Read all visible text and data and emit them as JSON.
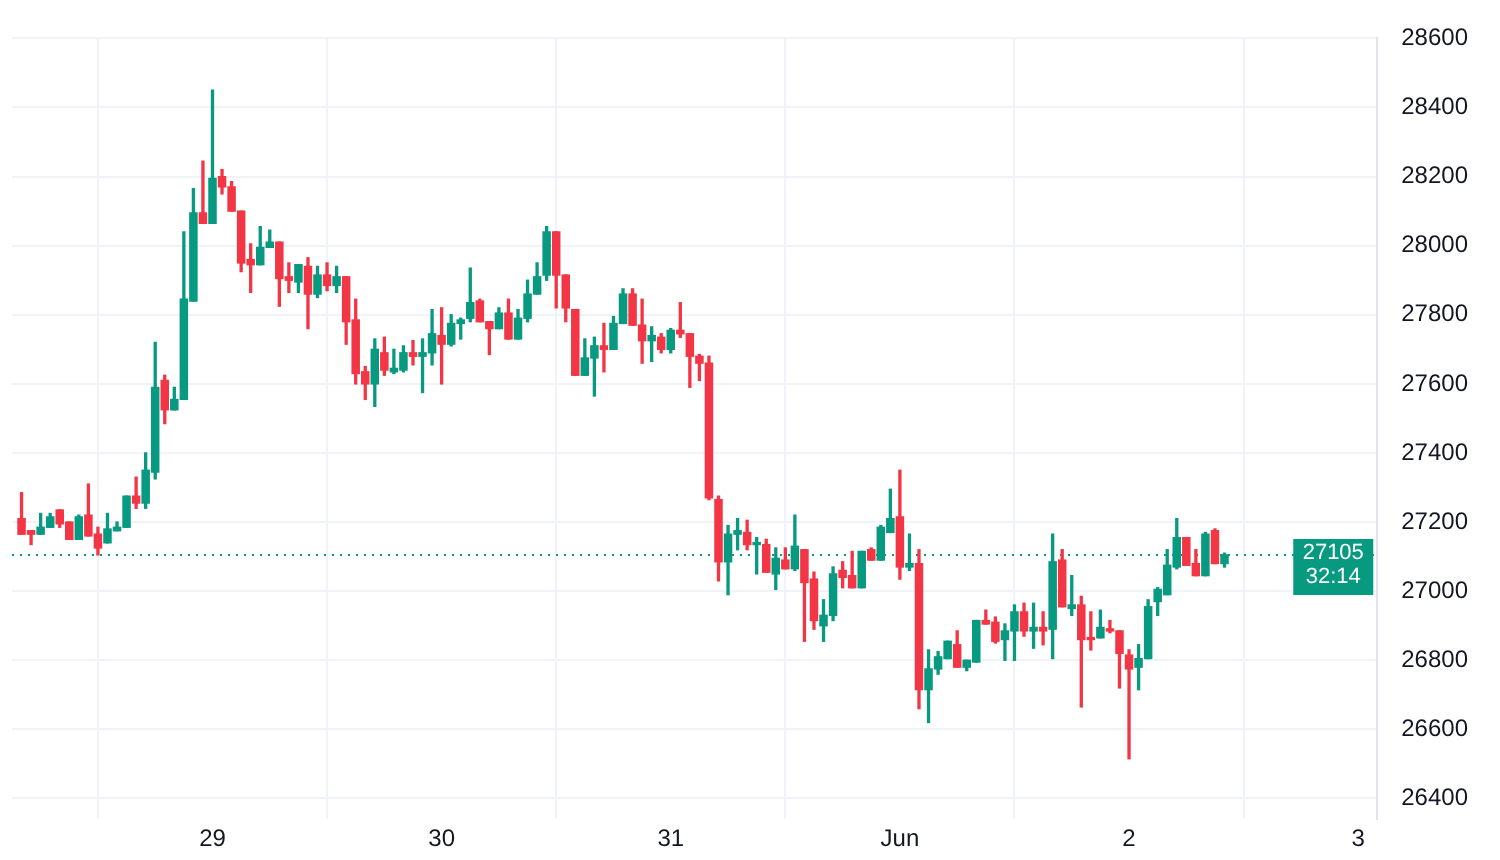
{
  "chart_data": {
    "type": "candlestick",
    "x": [
      "--05-28T04:00",
      "--05-28T05:00",
      "--05-28T06:00",
      "--05-28T07:00",
      "--05-28T08:00",
      "--05-28T09:00",
      "--05-28T10:00",
      "--05-28T11:00",
      "--05-28T12:00",
      "--05-28T13:00",
      "--05-28T14:00",
      "--05-28T15:00",
      "--05-28T16:00",
      "--05-28T17:00",
      "--05-28T18:00",
      "--05-28T19:00",
      "--05-28T20:00",
      "--05-28T21:00",
      "--05-28T22:00",
      "--05-28T23:00",
      "--05-29T00:00",
      "--05-29T01:00",
      "--05-29T02:00",
      "--05-29T03:00",
      "--05-29T04:00",
      "--05-29T05:00",
      "--05-29T06:00",
      "--05-29T07:00",
      "--05-29T08:00",
      "--05-29T09:00",
      "--05-29T10:00",
      "--05-29T11:00",
      "--05-29T12:00",
      "--05-29T13:00",
      "--05-29T14:00",
      "--05-29T15:00",
      "--05-29T16:00",
      "--05-29T17:00",
      "--05-29T18:00",
      "--05-29T19:00",
      "--05-29T20:00",
      "--05-29T21:00",
      "--05-29T22:00",
      "--05-29T23:00",
      "--05-30T00:00",
      "--05-30T01:00",
      "--05-30T02:00",
      "--05-30T03:00",
      "--05-30T04:00",
      "--05-30T05:00",
      "--05-30T06:00",
      "--05-30T07:00",
      "--05-30T08:00",
      "--05-30T09:00",
      "--05-30T10:00",
      "--05-30T11:00",
      "--05-30T12:00",
      "--05-30T13:00",
      "--05-30T14:00",
      "--05-30T15:00",
      "--05-30T16:00",
      "--05-30T17:00",
      "--05-30T18:00",
      "--05-30T19:00",
      "--05-30T20:00",
      "--05-30T21:00",
      "--05-30T22:00",
      "--05-30T23:00",
      "--05-31T00:00",
      "--05-31T01:00",
      "--05-31T02:00",
      "--05-31T03:00",
      "--05-31T04:00",
      "--05-31T05:00",
      "--05-31T06:00",
      "--05-31T07:00",
      "--05-31T08:00",
      "--05-31T09:00",
      "--05-31T10:00",
      "--05-31T11:00",
      "--05-31T12:00",
      "--05-31T13:00",
      "--05-31T14:00",
      "--05-31T15:00",
      "--05-31T16:00",
      "--05-31T17:00",
      "--05-31T18:00",
      "--05-31T19:00",
      "--05-31T20:00",
      "--05-31T21:00",
      "--05-31T22:00",
      "--05-31T23:00",
      "--06-01T00:00",
      "--06-01T01:00",
      "--06-01T02:00",
      "--06-01T03:00",
      "--06-01T04:00",
      "--06-01T05:00",
      "--06-01T06:00",
      "--06-01T07:00",
      "--06-01T08:00",
      "--06-01T09:00",
      "--06-01T10:00",
      "--06-01T11:00",
      "--06-01T12:00",
      "--06-01T13:00",
      "--06-01T14:00",
      "--06-01T15:00",
      "--06-01T16:00",
      "--06-01T17:00",
      "--06-01T18:00",
      "--06-01T19:00",
      "--06-01T20:00",
      "--06-01T21:00",
      "--06-01T22:00",
      "--06-01T23:00",
      "--06-02T00:00",
      "--06-02T01:00",
      "--06-02T02:00",
      "--06-02T03:00",
      "--06-02T04:00",
      "--06-02T05:00",
      "--06-02T06:00",
      "--06-02T07:00",
      "--06-02T08:00",
      "--06-02T09:00",
      "--06-02T10:00"
    ],
    "ohlc": [
      [
        27210,
        27285,
        27165,
        27165
      ],
      [
        27175,
        27175,
        27135,
        27165
      ],
      [
        27165,
        27225,
        27165,
        27185
      ],
      [
        27185,
        27225,
        27185,
        27215
      ],
      [
        27235,
        27235,
        27185,
        27195
      ],
      [
        27200,
        27200,
        27150,
        27150
      ],
      [
        27150,
        27220,
        27150,
        27215
      ],
      [
        27220,
        27310,
        27160,
        27160
      ],
      [
        27165,
        27185,
        27105,
        27125
      ],
      [
        27140,
        27225,
        27140,
        27180
      ],
      [
        27175,
        27200,
        27175,
        27185
      ],
      [
        27185,
        27275,
        27185,
        27275
      ],
      [
        27275,
        27330,
        27240,
        27255
      ],
      [
        27255,
        27400,
        27240,
        27350
      ],
      [
        27345,
        27720,
        27325,
        27590
      ],
      [
        27610,
        27625,
        27485,
        27525
      ],
      [
        27525,
        27590,
        27525,
        27555
      ],
      [
        27555,
        28040,
        27555,
        27845
      ],
      [
        27840,
        28165,
        27840,
        28095
      ],
      [
        28095,
        28245,
        28065,
        28065
      ],
      [
        28065,
        28450,
        28065,
        28195
      ],
      [
        28200,
        28220,
        28150,
        28170
      ],
      [
        28170,
        28185,
        28100,
        28100
      ],
      [
        28100,
        28100,
        27925,
        27950
      ],
      [
        27960,
        28005,
        27865,
        27945
      ],
      [
        27945,
        28055,
        27945,
        27995
      ],
      [
        27995,
        28045,
        27995,
        28010
      ],
      [
        28010,
        28010,
        27825,
        27905
      ],
      [
        27910,
        27950,
        27865,
        27900
      ],
      [
        27895,
        27945,
        27865,
        27945
      ],
      [
        27940,
        27965,
        27760,
        27860
      ],
      [
        27860,
        27940,
        27850,
        27915
      ],
      [
        27915,
        27950,
        27870,
        27885
      ],
      [
        27885,
        27940,
        27865,
        27910
      ],
      [
        27910,
        27910,
        27715,
        27780
      ],
      [
        27785,
        27845,
        27600,
        27630
      ],
      [
        27635,
        27650,
        27555,
        27600
      ],
      [
        27600,
        27730,
        27535,
        27700
      ],
      [
        27690,
        27735,
        27625,
        27640
      ],
      [
        27635,
        27700,
        27630,
        27645
      ],
      [
        27640,
        27710,
        27635,
        27690
      ],
      [
        27690,
        27725,
        27655,
        27680
      ],
      [
        27680,
        27730,
        27575,
        27690
      ],
      [
        27690,
        27815,
        27655,
        27745
      ],
      [
        27740,
        27820,
        27600,
        27715
      ],
      [
        27715,
        27800,
        27710,
        27775
      ],
      [
        27775,
        27790,
        27730,
        27785
      ],
      [
        27790,
        27935,
        27780,
        27835
      ],
      [
        27840,
        27845,
        27780,
        27780
      ],
      [
        27780,
        27780,
        27685,
        27760
      ],
      [
        27760,
        27820,
        27760,
        27805
      ],
      [
        27805,
        27845,
        27730,
        27730
      ],
      [
        27730,
        27815,
        27730,
        27790
      ],
      [
        27790,
        27900,
        27780,
        27860
      ],
      [
        27860,
        27950,
        27860,
        27910
      ],
      [
        27915,
        28055,
        27900,
        28040
      ],
      [
        28040,
        28040,
        27820,
        27915
      ],
      [
        27915,
        27915,
        27780,
        27820
      ],
      [
        27815,
        27815,
        27625,
        27625
      ],
      [
        27625,
        27730,
        27625,
        27675
      ],
      [
        27675,
        27735,
        27565,
        27710
      ],
      [
        27710,
        27775,
        27635,
        27700
      ],
      [
        27700,
        27795,
        27700,
        27775
      ],
      [
        27775,
        27875,
        27775,
        27860
      ],
      [
        27860,
        27875,
        27770,
        27770
      ],
      [
        27770,
        27845,
        27660,
        27725
      ],
      [
        27725,
        27765,
        27665,
        27740
      ],
      [
        27735,
        27745,
        27690,
        27700
      ],
      [
        27700,
        27760,
        27690,
        27755
      ],
      [
        27755,
        27835,
        27735,
        27745
      ],
      [
        27745,
        27745,
        27590,
        27680
      ],
      [
        27680,
        27685,
        27610,
        27660
      ],
      [
        27660,
        27680,
        27265,
        27270
      ],
      [
        27265,
        27275,
        27030,
        27085
      ],
      [
        27085,
        27190,
        26990,
        27165
      ],
      [
        27165,
        27210,
        27120,
        27175
      ],
      [
        27170,
        27205,
        27120,
        27135
      ],
      [
        27135,
        27155,
        27050,
        27140
      ],
      [
        27135,
        27150,
        27055,
        27055
      ],
      [
        27050,
        27125,
        27005,
        27095
      ],
      [
        27090,
        27125,
        27065,
        27065
      ],
      [
        27065,
        27220,
        27060,
        27130
      ],
      [
        27120,
        27120,
        26855,
        27025
      ],
      [
        27035,
        27055,
        26890,
        26915
      ],
      [
        26900,
        26975,
        26855,
        26930
      ],
      [
        26930,
        27070,
        26915,
        27050
      ],
      [
        27060,
        27085,
        27010,
        27040
      ],
      [
        27045,
        27115,
        27010,
        27010
      ],
      [
        27010,
        27115,
        27010,
        27115
      ],
      [
        27120,
        27125,
        27090,
        27090
      ],
      [
        27090,
        27190,
        27090,
        27185
      ],
      [
        27170,
        27295,
        27170,
        27210
      ],
      [
        27215,
        27350,
        27035,
        27070
      ],
      [
        27070,
        27165,
        27060,
        27080
      ],
      [
        27080,
        27120,
        26660,
        26715
      ],
      [
        26715,
        26830,
        26620,
        26775
      ],
      [
        26775,
        26825,
        26760,
        26810
      ],
      [
        26805,
        26855,
        26805,
        26855
      ],
      [
        26845,
        26885,
        26780,
        26780
      ],
      [
        26780,
        26800,
        26770,
        26800
      ],
      [
        26795,
        26915,
        26795,
        26915
      ],
      [
        26915,
        26945,
        26905,
        26905
      ],
      [
        26910,
        26925,
        26850,
        26855
      ],
      [
        26860,
        26905,
        26800,
        26885
      ],
      [
        26885,
        26960,
        26800,
        26940
      ],
      [
        26940,
        26965,
        26870,
        26885
      ],
      [
        26885,
        26965,
        26835,
        26895
      ],
      [
        26895,
        26940,
        26845,
        26885
      ],
      [
        26890,
        27165,
        26805,
        27085
      ],
      [
        27090,
        27120,
        26955,
        26955
      ],
      [
        26950,
        27045,
        26930,
        26960
      ],
      [
        26960,
        26985,
        26665,
        26860
      ],
      [
        26865,
        26940,
        26830,
        26860
      ],
      [
        26865,
        26945,
        26865,
        26895
      ],
      [
        26890,
        26915,
        26880,
        26885
      ],
      [
        26885,
        26885,
        26720,
        26820
      ],
      [
        26815,
        26830,
        26515,
        26775
      ],
      [
        26780,
        26845,
        26715,
        26805
      ],
      [
        26805,
        26975,
        26805,
        26955
      ],
      [
        26970,
        27010,
        26930,
        27005
      ],
      [
        26990,
        27120,
        26990,
        27075
      ],
      [
        27070,
        27210,
        27065,
        27155
      ],
      [
        27155,
        27155,
        27075,
        27075
      ],
      [
        27080,
        27120,
        27045,
        27045
      ],
      [
        27045,
        27170,
        27045,
        27165
      ],
      [
        27175,
        27180,
        27080,
        27080
      ],
      [
        27080,
        27110,
        27070,
        27105
      ]
    ],
    "colors": [
      "#f23645",
      "#f23645",
      "#089981",
      "#089981",
      "#f23645",
      "#f23645",
      "#089981",
      "#f23645",
      "#f23645",
      "#089981",
      "#089981",
      "#089981",
      "#f23645",
      "#089981",
      "#089981",
      "#f23645",
      "#089981",
      "#089981",
      "#089981",
      "#f23645",
      "#089981",
      "#f23645",
      "#f23645",
      "#f23645",
      "#f23645",
      "#089981",
      "#089981",
      "#f23645",
      "#f23645",
      "#089981",
      "#f23645",
      "#089981",
      "#f23645",
      "#089981",
      "#f23645",
      "#f23645",
      "#f23645",
      "#089981",
      "#f23645",
      "#089981",
      "#089981",
      "#f23645",
      "#089981",
      "#089981",
      "#f23645",
      "#089981",
      "#089981",
      "#089981",
      "#f23645",
      "#f23645",
      "#089981",
      "#f23645",
      "#089981",
      "#089981",
      "#089981",
      "#089981",
      "#f23645",
      "#f23645",
      "#f23645",
      "#089981",
      "#089981",
      "#f23645",
      "#089981",
      "#089981",
      "#f23645",
      "#f23645",
      "#089981",
      "#f23645",
      "#089981",
      "#f23645",
      "#f23645",
      "#f23645",
      "#f23645",
      "#f23645",
      "#089981",
      "#089981",
      "#f23645",
      "#089981",
      "#f23645",
      "#089981",
      "#f23645",
      "#089981",
      "#f23645",
      "#f23645",
      "#089981",
      "#089981",
      "#f23645",
      "#f23645",
      "#089981",
      "#f23645",
      "#089981",
      "#089981",
      "#f23645",
      "#089981",
      "#f23645",
      "#089981",
      "#089981",
      "#089981",
      "#f23645",
      "#089981",
      "#089981",
      "#f23645",
      "#f23645",
      "#089981",
      "#089981",
      "#f23645",
      "#089981",
      "#f23645",
      "#089981",
      "#f23645",
      "#089981",
      "#f23645",
      "#f23645",
      "#089981",
      "#f23645",
      "#f23645",
      "#f23645",
      "#089981",
      "#089981",
      "#089981",
      "#089981",
      "#089981",
      "#f23645",
      "#f23645",
      "#089981",
      "#f23645",
      "#089981"
    ],
    "xlim": [
      "--05-28T03:00",
      "--06-03T02:00"
    ],
    "xticks": [
      {
        "value": "--05-29",
        "label": "29"
      },
      {
        "value": "--05-30",
        "label": "30"
      },
      {
        "value": "--05-31",
        "label": "31"
      },
      {
        "value": "--06-01",
        "label": "Jun"
      },
      {
        "value": "--06-02",
        "label": "2"
      },
      {
        "value": "--06-03",
        "label": "3"
      }
    ],
    "ylim": [
      26340,
      28600
    ],
    "yticks": [
      26400,
      26600,
      26800,
      27000,
      27200,
      27400,
      27600,
      27800,
      28000,
      28200,
      28400,
      28600
    ],
    "grid": true,
    "legend": false,
    "ref_lines": [
      {
        "axis": "y",
        "value": 27105,
        "label": "27105",
        "color": "#089981",
        "line_style": "dotted"
      }
    ],
    "annotations": [
      "32:14"
    ]
  }
}
